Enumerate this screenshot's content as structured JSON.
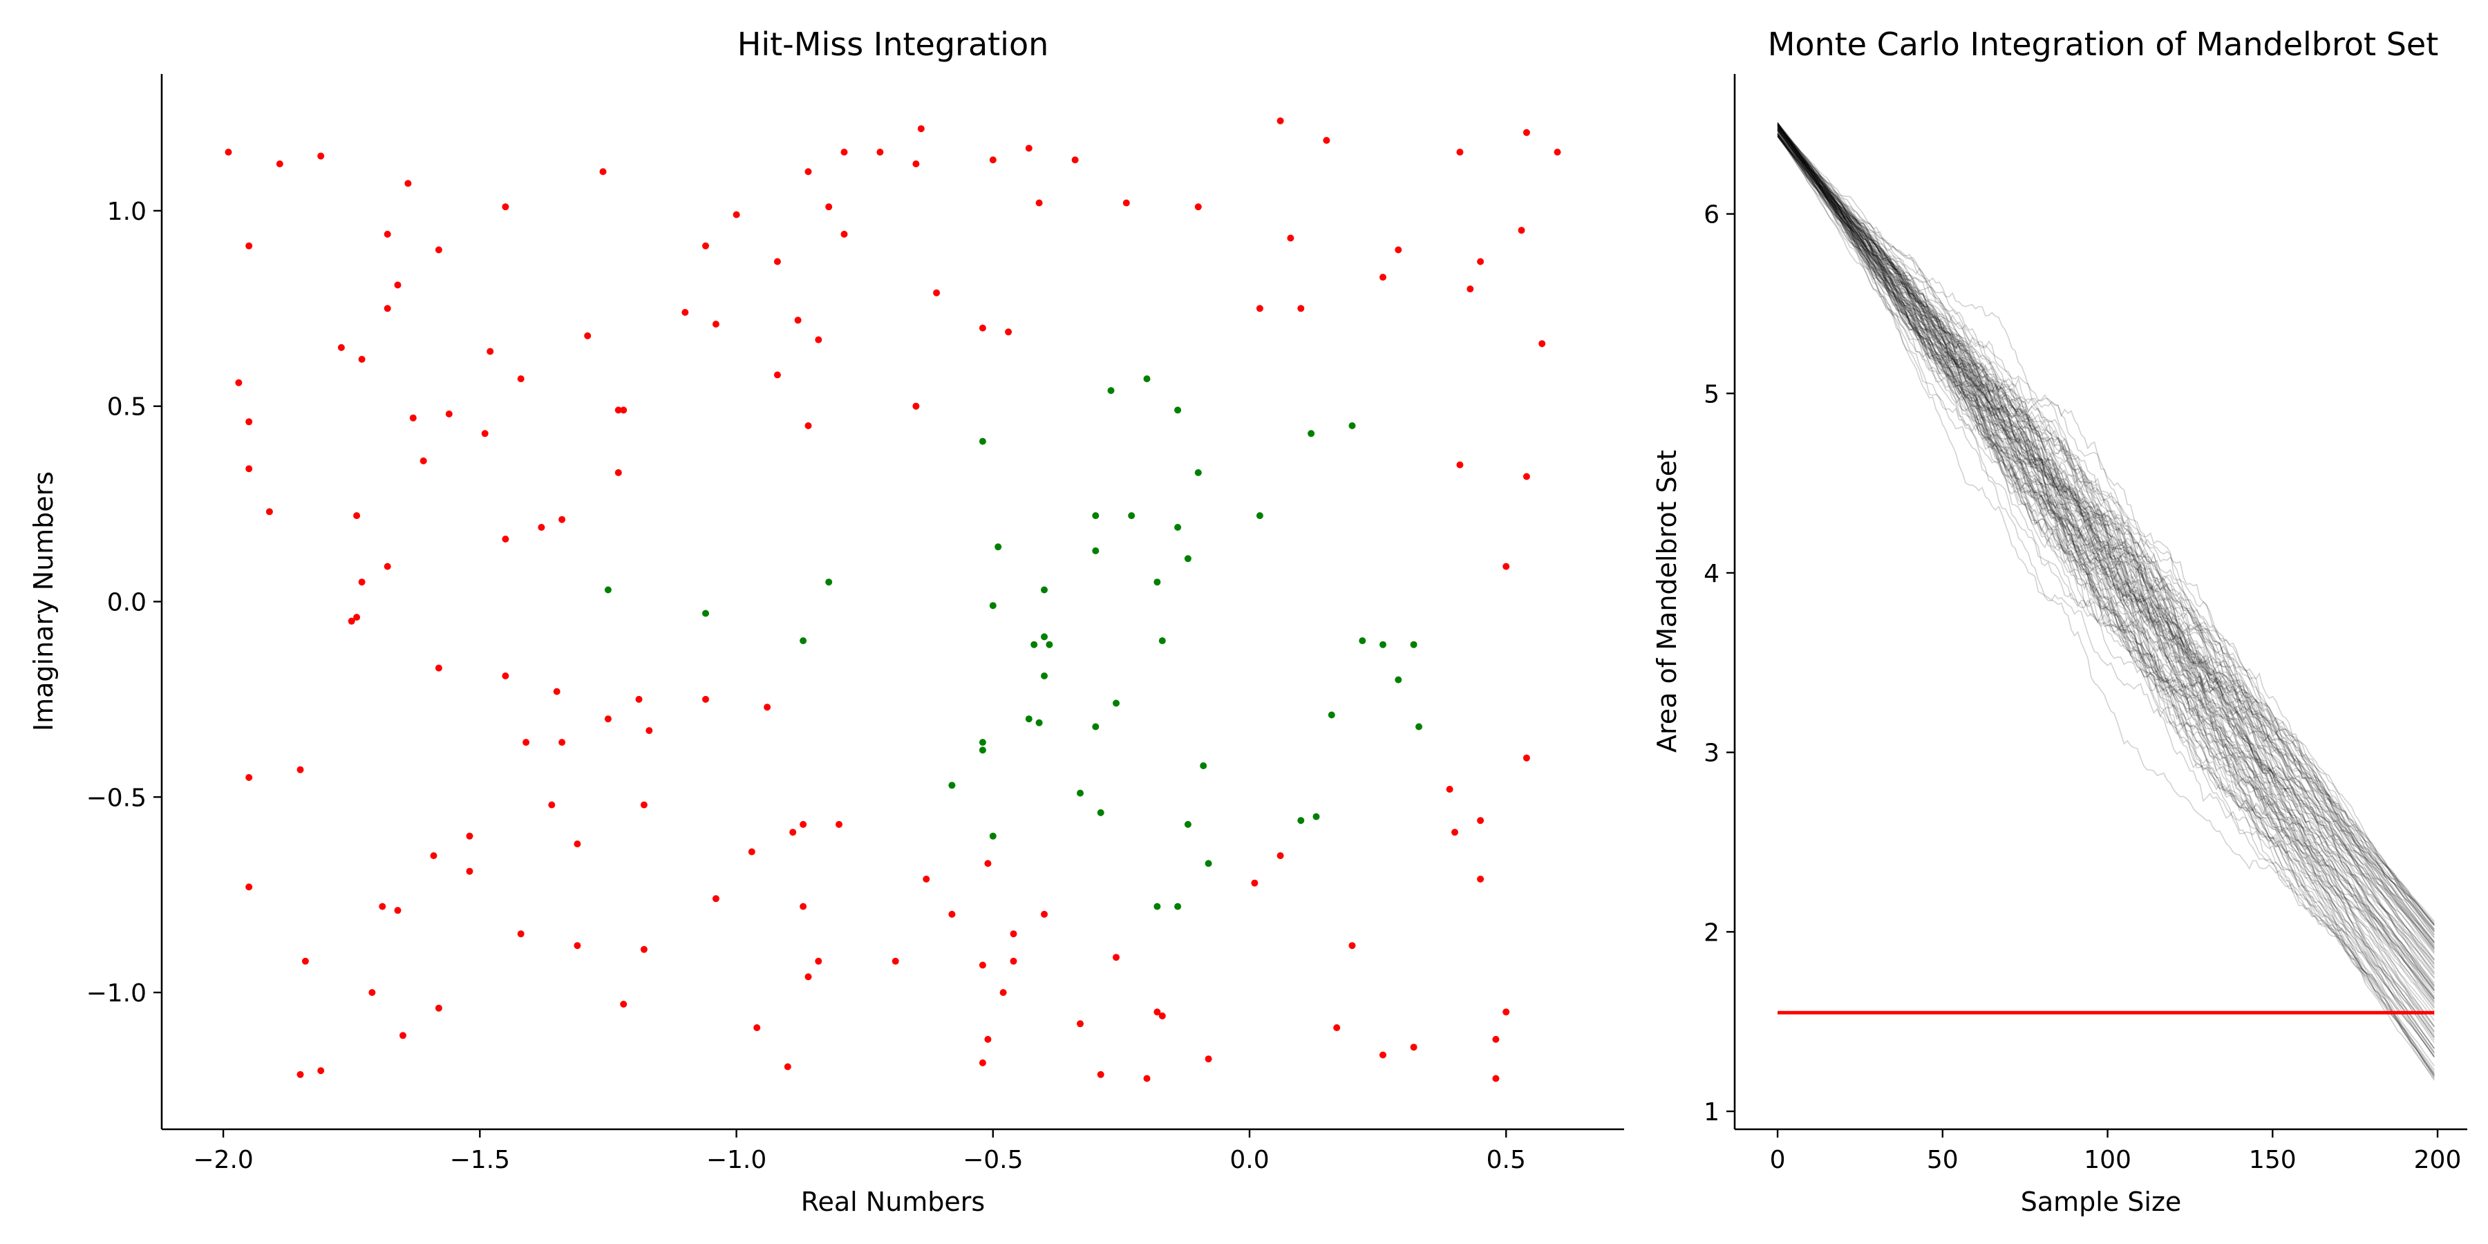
{
  "chart_data": [
    {
      "type": "scatter",
      "title": "Hit-Miss Integration",
      "xlabel": "Real Numbers",
      "ylabel": "Imaginary Numbers",
      "xlim": [
        -2.12,
        0.73
      ],
      "ylim": [
        -1.35,
        1.35
      ],
      "xticks": [
        -2.0,
        -1.5,
        -1.0,
        -0.5,
        0.0,
        0.5
      ],
      "xtick_labels": [
        "−2.0",
        "−1.5",
        "−1.0",
        "−0.5",
        "0.0",
        "0.5"
      ],
      "yticks": [
        -1.0,
        -0.5,
        0.0,
        0.5,
        1.0
      ],
      "ytick_labels": [
        "−1.0",
        "−0.5",
        "0.0",
        "0.5",
        "1.0"
      ],
      "grid": false,
      "series": [
        {
          "color": "#ff0000",
          "points": [
            [
              -1.99,
              1.15
            ],
            [
              -1.89,
              1.12
            ],
            [
              -1.81,
              1.14
            ],
            [
              -1.95,
              0.91
            ],
            [
              -1.97,
              0.56
            ],
            [
              -1.95,
              0.46
            ],
            [
              -1.95,
              0.34
            ],
            [
              -1.91,
              0.23
            ],
            [
              -1.77,
              0.65
            ],
            [
              -1.73,
              0.62
            ],
            [
              -1.74,
              0.22
            ],
            [
              -1.73,
              0.05
            ],
            [
              -1.74,
              -0.04
            ],
            [
              -1.75,
              -0.05
            ],
            [
              -1.68,
              0.09
            ],
            [
              -1.64,
              1.07
            ],
            [
              -1.68,
              0.94
            ],
            [
              -1.66,
              0.81
            ],
            [
              -1.68,
              0.75
            ],
            [
              -1.63,
              0.47
            ],
            [
              -1.61,
              0.36
            ],
            [
              -1.58,
              0.9
            ],
            [
              -1.56,
              0.48
            ],
            [
              -1.48,
              0.64
            ],
            [
              -1.49,
              0.43
            ],
            [
              -1.45,
              1.01
            ],
            [
              -1.42,
              0.57
            ],
            [
              -1.45,
              0.16
            ],
            [
              -1.38,
              0.19
            ],
            [
              -1.34,
              0.21
            ],
            [
              -1.29,
              0.68
            ],
            [
              -1.26,
              1.1
            ],
            [
              -1.23,
              0.49
            ],
            [
              -1.22,
              0.49
            ],
            [
              -1.23,
              0.33
            ],
            [
              -1.1,
              0.74
            ],
            [
              -1.06,
              0.91
            ],
            [
              -1.04,
              0.71
            ],
            [
              -1.0,
              0.99
            ],
            [
              -0.92,
              0.87
            ],
            [
              -0.92,
              0.58
            ],
            [
              -0.88,
              0.72
            ],
            [
              -0.86,
              1.1
            ],
            [
              -0.86,
              0.45
            ],
            [
              -0.84,
              0.67
            ],
            [
              -0.82,
              1.01
            ],
            [
              -0.79,
              1.15
            ],
            [
              -0.79,
              0.94
            ],
            [
              -0.72,
              1.15
            ],
            [
              -0.64,
              1.21
            ],
            [
              -0.65,
              1.12
            ],
            [
              -0.61,
              0.79
            ],
            [
              -0.65,
              0.5
            ],
            [
              -0.52,
              0.7
            ],
            [
              -0.5,
              1.13
            ],
            [
              -0.47,
              0.69
            ],
            [
              -0.43,
              1.16
            ],
            [
              -0.41,
              1.02
            ],
            [
              -0.34,
              1.13
            ],
            [
              -0.24,
              1.02
            ],
            [
              -0.1,
              1.01
            ],
            [
              -1.58,
              -0.17
            ],
            [
              -1.45,
              -0.19
            ],
            [
              -1.41,
              -0.36
            ],
            [
              -1.35,
              -0.23
            ],
            [
              -1.34,
              -0.36
            ],
            [
              -1.25,
              -0.3
            ],
            [
              -1.19,
              -0.25
            ],
            [
              -1.17,
              -0.33
            ],
            [
              -1.06,
              -0.25
            ],
            [
              -0.94,
              -0.27
            ],
            [
              -1.95,
              -0.45
            ],
            [
              -1.85,
              -0.43
            ],
            [
              -1.36,
              -0.52
            ],
            [
              -1.31,
              -0.62
            ],
            [
              -1.18,
              -0.52
            ],
            [
              -1.52,
              -0.6
            ],
            [
              -1.52,
              -0.69
            ],
            [
              -1.59,
              -0.65
            ],
            [
              -1.95,
              -0.73
            ],
            [
              -1.69,
              -0.78
            ],
            [
              -1.66,
              -0.79
            ],
            [
              -1.42,
              -0.85
            ],
            [
              -1.31,
              -0.88
            ],
            [
              -1.18,
              -0.89
            ],
            [
              -1.04,
              -0.76
            ],
            [
              -0.97,
              -0.64
            ],
            [
              -0.89,
              -0.59
            ],
            [
              -0.87,
              -0.57
            ],
            [
              -0.8,
              -0.57
            ],
            [
              -0.87,
              -0.78
            ],
            [
              -0.86,
              -0.96
            ],
            [
              -0.84,
              -0.92
            ],
            [
              -1.84,
              -0.92
            ],
            [
              -1.71,
              -1.0
            ],
            [
              -1.65,
              -1.11
            ],
            [
              -1.58,
              -1.04
            ],
            [
              -1.22,
              -1.03
            ],
            [
              -0.96,
              -1.09
            ],
            [
              -0.9,
              -1.19
            ],
            [
              -1.85,
              -1.21
            ],
            [
              -1.81,
              -1.2
            ],
            [
              -0.69,
              -0.92
            ],
            [
              -0.63,
              -0.71
            ],
            [
              -0.58,
              -0.8
            ],
            [
              -0.51,
              -0.67
            ],
            [
              -0.52,
              -0.93
            ],
            [
              -0.51,
              -1.12
            ],
            [
              -0.52,
              -1.18
            ],
            [
              -0.48,
              -1.0
            ],
            [
              -0.46,
              -0.85
            ],
            [
              -0.46,
              -0.92
            ],
            [
              -0.4,
              -0.8
            ],
            [
              -0.33,
              -1.08
            ],
            [
              -0.29,
              -1.21
            ],
            [
              -0.26,
              -0.91
            ],
            [
              -0.18,
              -1.05
            ],
            [
              -0.17,
              -1.06
            ],
            [
              -0.2,
              -1.22
            ],
            [
              -0.08,
              -1.17
            ],
            [
              0.01,
              -0.72
            ],
            [
              0.06,
              -0.65
            ],
            [
              0.17,
              -1.09
            ],
            [
              0.2,
              -0.88
            ],
            [
              0.26,
              -1.16
            ],
            [
              0.32,
              -1.14
            ],
            [
              0.39,
              -0.48
            ],
            [
              0.4,
              -0.59
            ],
            [
              0.45,
              -0.56
            ],
            [
              0.45,
              -0.71
            ],
            [
              0.48,
              -1.12
            ],
            [
              0.48,
              -1.22
            ],
            [
              0.5,
              -1.05
            ],
            [
              0.54,
              -0.4
            ],
            [
              0.06,
              1.23
            ],
            [
              0.15,
              1.18
            ],
            [
              0.08,
              0.93
            ],
            [
              0.1,
              0.75
            ],
            [
              0.02,
              0.75
            ],
            [
              0.26,
              0.83
            ],
            [
              0.29,
              0.9
            ],
            [
              0.41,
              1.15
            ],
            [
              0.43,
              0.8
            ],
            [
              0.45,
              0.87
            ],
            [
              0.41,
              0.35
            ],
            [
              0.5,
              0.09
            ],
            [
              0.54,
              1.2
            ],
            [
              0.53,
              0.95
            ],
            [
              0.57,
              0.66
            ],
            [
              0.54,
              0.32
            ],
            [
              0.6,
              1.15
            ]
          ]
        },
        {
          "color": "#008000",
          "points": [
            [
              -1.25,
              0.03
            ],
            [
              -1.06,
              -0.03
            ],
            [
              -0.82,
              0.05
            ],
            [
              -0.87,
              -0.1
            ],
            [
              -0.52,
              0.41
            ],
            [
              -0.49,
              0.14
            ],
            [
              -0.5,
              -0.01
            ],
            [
              -0.52,
              -0.36
            ],
            [
              -0.52,
              -0.38
            ],
            [
              -0.58,
              -0.47
            ],
            [
              -0.5,
              -0.6
            ],
            [
              -0.4,
              0.03
            ],
            [
              -0.42,
              -0.11
            ],
            [
              -0.4,
              -0.09
            ],
            [
              -0.39,
              -0.11
            ],
            [
              -0.4,
              -0.19
            ],
            [
              -0.43,
              -0.3
            ],
            [
              -0.41,
              -0.31
            ],
            [
              -0.33,
              -0.49
            ],
            [
              -0.29,
              -0.54
            ],
            [
              -0.3,
              0.22
            ],
            [
              -0.3,
              0.13
            ],
            [
              -0.3,
              -0.32
            ],
            [
              -0.26,
              -0.26
            ],
            [
              -0.27,
              0.54
            ],
            [
              -0.23,
              0.22
            ],
            [
              -0.2,
              0.57
            ],
            [
              -0.18,
              0.05
            ],
            [
              -0.17,
              -0.1
            ],
            [
              -0.14,
              0.49
            ],
            [
              -0.14,
              0.19
            ],
            [
              -0.12,
              0.11
            ],
            [
              -0.1,
              0.33
            ],
            [
              -0.12,
              -0.57
            ],
            [
              -0.09,
              -0.42
            ],
            [
              -0.08,
              -0.67
            ],
            [
              -0.14,
              -0.78
            ],
            [
              -0.18,
              -0.78
            ],
            [
              0.02,
              0.22
            ],
            [
              0.12,
              0.43
            ],
            [
              0.2,
              0.45
            ],
            [
              0.1,
              -0.56
            ],
            [
              0.13,
              -0.55
            ],
            [
              0.16,
              -0.29
            ],
            [
              0.22,
              -0.1
            ],
            [
              0.26,
              -0.11
            ],
            [
              0.29,
              -0.2
            ],
            [
              0.32,
              -0.11
            ],
            [
              0.33,
              -0.32
            ]
          ]
        }
      ]
    },
    {
      "type": "line",
      "title": "Monte Carlo Integration of Mandelbrot Set",
      "xlabel": "Sample Size",
      "ylabel": "Area of Mandelbrot Set",
      "xlim": [
        -13,
        209
      ],
      "ylim": [
        0.9,
        6.78
      ],
      "xticks": [
        0,
        50,
        100,
        150,
        200
      ],
      "xtick_labels": [
        "0",
        "50",
        "100",
        "150",
        "200"
      ],
      "yticks": [
        1,
        2,
        3,
        4,
        5,
        6
      ],
      "ytick_labels": [
        "1",
        "2",
        "3",
        "4",
        "5",
        "6"
      ],
      "grid": false,
      "gray_runs": {
        "count": 100,
        "x_range": [
          0,
          199
        ],
        "start_value_range": [
          6.43,
          6.51
        ],
        "end_value_range": [
          1.17,
          2.07
        ],
        "color": "#000000",
        "opacity": 0.18
      },
      "reference_line": {
        "y": 1.55,
        "x_range": [
          0,
          199
        ],
        "color": "#ff0000"
      }
    }
  ]
}
